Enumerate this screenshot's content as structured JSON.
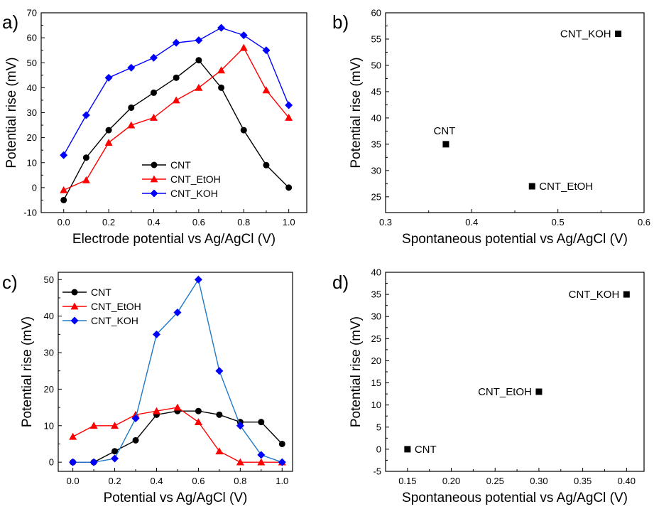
{
  "chart_data": [
    {
      "panel": "a)",
      "type": "line",
      "xlabel": "Electrode potential vs Ag/AgCl (V)",
      "ylabel": "Potential rise (mV)",
      "xlim": [
        -0.1,
        1.08
      ],
      "ylim": [
        -10,
        70
      ],
      "xticks": [
        0.0,
        0.2,
        0.4,
        0.6,
        0.8,
        1.0
      ],
      "xtick_labels": [
        "0.0",
        "0.2",
        "0.4",
        "0.6",
        "0.8",
        "1.0"
      ],
      "yticks": [
        -10,
        0,
        10,
        20,
        30,
        40,
        50,
        60,
        70
      ],
      "ytick_labels": [
        "-10",
        "0",
        "10",
        "20",
        "30",
        "40",
        "50",
        "60",
        "70"
      ],
      "legend_position": "lower-center",
      "series": [
        {
          "name": "CNT",
          "color": "#000000",
          "marker": "circle",
          "x": [
            0.0,
            0.1,
            0.2,
            0.3,
            0.4,
            0.5,
            0.6,
            0.7,
            0.8,
            0.9,
            1.0
          ],
          "y": [
            -5,
            12,
            23,
            32,
            38,
            44,
            51,
            40,
            23,
            9,
            0
          ]
        },
        {
          "name": "CNT_EtOH",
          "color": "#ff0000",
          "marker": "triangle",
          "x": [
            0.0,
            0.1,
            0.2,
            0.3,
            0.4,
            0.5,
            0.6,
            0.7,
            0.8,
            0.9,
            1.0
          ],
          "y": [
            -1,
            3,
            18,
            25,
            28,
            35,
            40,
            47,
            56,
            39,
            28
          ]
        },
        {
          "name": "CNT_KOH",
          "color": "#0000ff",
          "marker": "diamond",
          "x": [
            0.0,
            0.1,
            0.2,
            0.3,
            0.4,
            0.5,
            0.6,
            0.7,
            0.8,
            0.9,
            1.0
          ],
          "y": [
            13,
            29,
            44,
            48,
            52,
            58,
            59,
            64,
            61,
            55,
            33
          ]
        }
      ]
    },
    {
      "panel": "b)",
      "type": "scatter",
      "xlabel": "Spontaneous potential vs Ag/AgCl (V)",
      "ylabel": "Potential rise (mV)",
      "xlim": [
        0.3,
        0.6
      ],
      "ylim": [
        22,
        60
      ],
      "xticks": [
        0.3,
        0.4,
        0.5,
        0.6
      ],
      "xtick_labels": [
        "0.3",
        "0.4",
        "0.5",
        "0.6"
      ],
      "yticks": [
        25,
        30,
        35,
        40,
        45,
        50,
        55,
        60
      ],
      "ytick_labels": [
        "25",
        "30",
        "35",
        "40",
        "45",
        "50",
        "55",
        "60"
      ],
      "points": [
        {
          "label": "CNT",
          "x": 0.37,
          "y": 35,
          "label_pos": "above"
        },
        {
          "label": "CNT_EtOH",
          "x": 0.47,
          "y": 27,
          "label_pos": "right"
        },
        {
          "label": "CNT_KOH",
          "x": 0.57,
          "y": 56,
          "label_pos": "left"
        }
      ]
    },
    {
      "panel": "c)",
      "type": "line",
      "xlabel": "Potential vs Ag/AgCl (V)",
      "ylabel": "Potential rise (mV)",
      "xlim": [
        -0.07,
        1.05
      ],
      "ylim": [
        -2.5,
        52
      ],
      "xticks": [
        0.0,
        0.2,
        0.4,
        0.6,
        0.8,
        1.0
      ],
      "xtick_labels": [
        "0.0",
        "0.2",
        "0.4",
        "0.6",
        "0.8",
        "1.0"
      ],
      "yticks": [
        0,
        10,
        20,
        30,
        40,
        50
      ],
      "ytick_labels": [
        "0",
        "10",
        "20",
        "30",
        "40",
        "50"
      ],
      "legend_position": "top-left",
      "series": [
        {
          "name": "CNT",
          "color": "#000000",
          "marker": "circle",
          "x": [
            0.0,
            0.1,
            0.2,
            0.3,
            0.4,
            0.5,
            0.6,
            0.7,
            0.8,
            0.9,
            1.0
          ],
          "y": [
            0,
            0,
            3,
            6,
            13,
            14,
            14,
            13,
            11,
            11,
            5
          ]
        },
        {
          "name": "CNT_EtOH",
          "color": "#ff0000",
          "marker": "triangle",
          "x": [
            0.0,
            0.1,
            0.2,
            0.3,
            0.4,
            0.5,
            0.6,
            0.7,
            0.8,
            0.9,
            1.0
          ],
          "y": [
            7,
            10,
            10,
            13,
            14,
            15,
            11,
            3,
            0,
            0,
            0
          ]
        },
        {
          "name": "CNT_KOH",
          "color": "#0000ff",
          "marker": "diamond",
          "line_color": "#1f78c8",
          "x": [
            0.0,
            0.1,
            0.2,
            0.3,
            0.4,
            0.5,
            0.6,
            0.7,
            0.8,
            0.9,
            1.0
          ],
          "y": [
            0,
            0,
            1,
            12,
            35,
            41,
            50,
            25,
            10,
            2,
            0
          ]
        }
      ]
    },
    {
      "panel": "d)",
      "type": "scatter",
      "xlabel": "Spontaneous potential vs Ag/AgCl (V)",
      "ylabel": "Potential rise (mV)",
      "xlim": [
        0.125,
        0.42
      ],
      "ylim": [
        -5,
        40
      ],
      "xticks": [
        0.15,
        0.2,
        0.25,
        0.3,
        0.35,
        0.4
      ],
      "xtick_labels": [
        "0.15",
        "0.20",
        "0.25",
        "0.30",
        "0.35",
        "0.40"
      ],
      "yticks": [
        -5,
        0,
        5,
        10,
        15,
        20,
        25,
        30,
        35,
        40
      ],
      "ytick_labels": [
        "-5",
        "0",
        "5",
        "10",
        "15",
        "20",
        "25",
        "30",
        "35",
        "40"
      ],
      "points": [
        {
          "label": "CNT",
          "x": 0.15,
          "y": 0,
          "label_pos": "right"
        },
        {
          "label": "CNT_EtOH",
          "x": 0.3,
          "y": 13,
          "label_pos": "left"
        },
        {
          "label": "CNT_KOH",
          "x": 0.4,
          "y": 35,
          "label_pos": "left"
        }
      ]
    }
  ]
}
